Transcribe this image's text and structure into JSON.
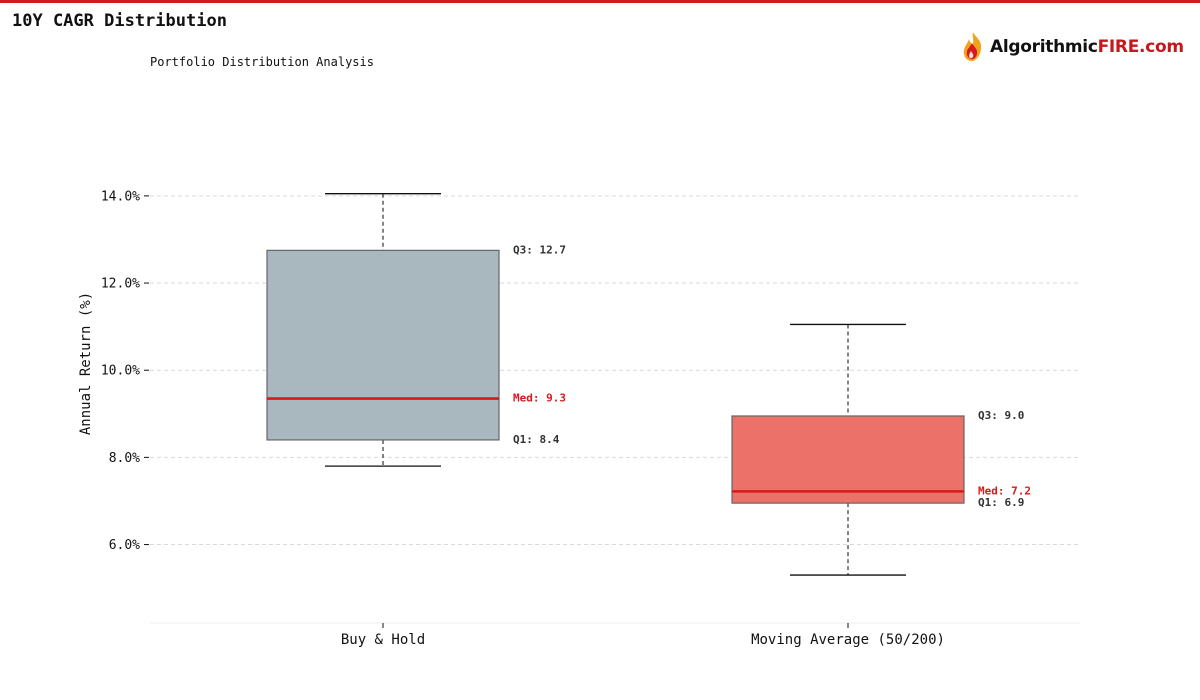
{
  "header": {
    "title": "10Y CAGR Distribution",
    "subtitle": "Portfolio Distribution Analysis",
    "logo_text_main": "Algorithmic",
    "logo_text_accent": "FIRE.com",
    "accent_color": "#d7191c"
  },
  "chart_data": {
    "type": "box",
    "title": "10Y CAGR Distribution",
    "subtitle": "Portfolio Distribution Analysis",
    "xlabel": "",
    "ylabel": "Annual Return (%)",
    "ylim": [
      4.2,
      16.2
    ],
    "yticks": [
      6.0,
      8.0,
      10.0,
      12.0,
      14.0
    ],
    "ytick_labels": [
      "6.0%",
      "8.0%",
      "10.0%",
      "12.0%",
      "14.0%"
    ],
    "grid": true,
    "categories": [
      "Buy & Hold",
      "Moving Average (50/200)"
    ],
    "boxes": [
      {
        "name": "Buy & Hold",
        "whisker_low": 7.8,
        "q1": 8.4,
        "median": 9.35,
        "q3": 12.75,
        "whisker_high": 14.05,
        "q1_label": "Q1: 8.4",
        "median_label": "Med: 9.3",
        "q3_label": "Q3: 12.7",
        "color": "#a9b8be"
      },
      {
        "name": "Moving Average (50/200)",
        "whisker_low": 5.3,
        "q1": 6.95,
        "median": 7.22,
        "q3": 8.95,
        "whisker_high": 11.05,
        "q1_label": "Q1: 6.9",
        "median_label": "Med: 7.2",
        "q3_label": "Q3: 9.0",
        "color": "#ec7168"
      }
    ],
    "median_color": "#d7191c"
  }
}
